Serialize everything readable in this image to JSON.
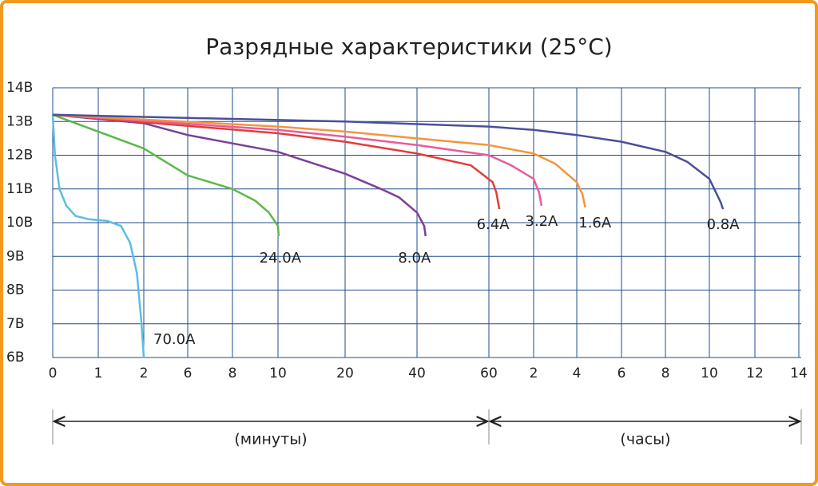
{
  "chart_data": {
    "type": "line",
    "title": "Разрядные характеристики (25°C)",
    "xlim": [
      0,
      840
    ],
    "xticks": [
      0,
      1,
      2,
      6,
      8,
      10,
      20,
      40,
      60,
      {
        "value": 120,
        "label": "2"
      },
      {
        "value": 240,
        "label": "4"
      },
      {
        "value": 360,
        "label": "6"
      },
      {
        "value": 480,
        "label": "8"
      },
      {
        "value": 600,
        "label": "10"
      },
      {
        "value": 720,
        "label": "12"
      },
      {
        "value": 840,
        "label": "14"
      }
    ],
    "ylim": [
      6,
      14
    ],
    "yticks": [
      {
        "value": 6,
        "label": "6В"
      },
      {
        "value": 7,
        "label": "7В"
      },
      {
        "value": 8,
        "label": "8В"
      },
      {
        "value": 9,
        "label": "9В"
      },
      {
        "value": 10,
        "label": "10В"
      },
      {
        "value": 11,
        "label": "11В"
      },
      {
        "value": 12,
        "label": "12В"
      },
      {
        "value": 13,
        "label": "13В"
      },
      {
        "value": 14,
        "label": "14В"
      }
    ],
    "grid": true,
    "annotations": [
      "(минуты)",
      "(часы)"
    ],
    "series": [
      {
        "name": "70.0A",
        "color": "#5bbde4",
        "x": [
          0,
          0.05,
          0.15,
          0.3,
          0.5,
          0.8,
          1.2,
          1.5,
          1.7,
          1.85,
          1.95,
          2.0
        ],
        "values": [
          13.2,
          12.0,
          11.0,
          10.5,
          10.2,
          10.1,
          10.05,
          9.9,
          9.4,
          8.5,
          7.0,
          6.0
        ]
      },
      {
        "name": "24.0A",
        "color": "#5cb848",
        "x": [
          0,
          1,
          2,
          4,
          6,
          8,
          9,
          9.6,
          10,
          10.1
        ],
        "values": [
          13.2,
          12.7,
          12.2,
          11.8,
          11.4,
          11.0,
          10.65,
          10.3,
          9.9,
          9.6
        ]
      },
      {
        "name": "8.0A",
        "color": "#7b3f98",
        "x": [
          0,
          2,
          6,
          10,
          20,
          30,
          35,
          40,
          42,
          42.4
        ],
        "values": [
          13.2,
          12.95,
          12.6,
          12.1,
          11.45,
          11.0,
          10.75,
          10.3,
          9.9,
          9.6
        ]
      },
      {
        "name": "6.4A",
        "color": "#e23c3a",
        "x": [
          0,
          10,
          20,
          40,
          55,
          65,
          70,
          74
        ],
        "values": [
          13.2,
          12.65,
          12.4,
          12.05,
          11.7,
          11.2,
          10.9,
          10.4
        ]
      },
      {
        "name": "3.2A",
        "color": "#e95b9c",
        "x": [
          0,
          10,
          20,
          40,
          60,
          90,
          120,
          135,
          142
        ],
        "values": [
          13.2,
          12.75,
          12.55,
          12.3,
          12.0,
          11.7,
          11.3,
          10.9,
          10.5
        ]
      },
      {
        "name": "1.6A",
        "color": "#f4953a",
        "x": [
          0,
          10,
          20,
          40,
          60,
          120,
          180,
          240,
          255,
          263
        ],
        "values": [
          13.2,
          12.85,
          12.7,
          12.5,
          12.3,
          12.05,
          11.75,
          11.2,
          10.85,
          10.45
        ]
      },
      {
        "name": "0.8A",
        "color": "#4a4f9c",
        "x": [
          0,
          20,
          60,
          120,
          240,
          360,
          480,
          540,
          600,
          630,
          636
        ],
        "values": [
          13.2,
          13.0,
          12.85,
          12.75,
          12.6,
          12.4,
          12.1,
          11.8,
          11.3,
          10.6,
          10.4
        ]
      }
    ]
  }
}
